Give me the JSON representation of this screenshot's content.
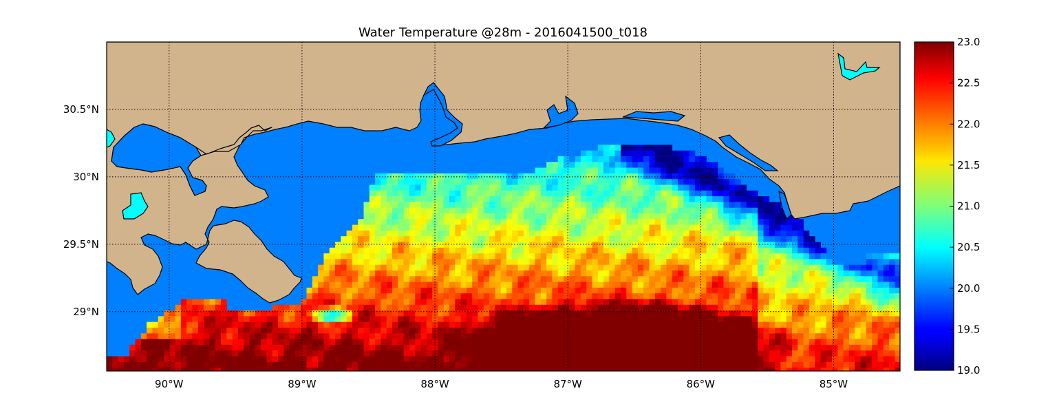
{
  "title": "Water Temperature @28m - 2016041500_t018",
  "map": {
    "lon_range": [
      -90.47,
      -84.5
    ],
    "lat_range": [
      28.56,
      31.0
    ],
    "lon_ticks": [
      {
        "value": -90,
        "label": "90°W"
      },
      {
        "value": -89,
        "label": "89°W"
      },
      {
        "value": -88,
        "label": "88°W"
      },
      {
        "value": -87,
        "label": "87°W"
      },
      {
        "value": -86,
        "label": "86°W"
      },
      {
        "value": -85,
        "label": "85°W"
      }
    ],
    "lat_ticks": [
      {
        "value": 30.5,
        "label": "30.5°N"
      },
      {
        "value": 30.0,
        "label": "30°N"
      },
      {
        "value": 29.5,
        "label": "29.5°N"
      },
      {
        "value": 29.0,
        "label": "29°N"
      }
    ],
    "gridlines": true,
    "land_color": "#d2b48c",
    "no_data_ocean_color": "#0080ff",
    "lake_color": "#00ffff"
  },
  "colorbar": {
    "min": 19.0,
    "max": 23.0,
    "colormap": "jet",
    "ticks": [
      {
        "value": 23.0,
        "label": "23.0"
      },
      {
        "value": 22.5,
        "label": "22.5"
      },
      {
        "value": 22.0,
        "label": "22.0"
      },
      {
        "value": 21.5,
        "label": "21.5"
      },
      {
        "value": 21.0,
        "label": "21.0"
      },
      {
        "value": 20.5,
        "label": "20.5"
      },
      {
        "value": 20.0,
        "label": "20.0"
      },
      {
        "value": 19.5,
        "label": "19.5"
      },
      {
        "value": 19.0,
        "label": "19.0"
      }
    ]
  }
}
